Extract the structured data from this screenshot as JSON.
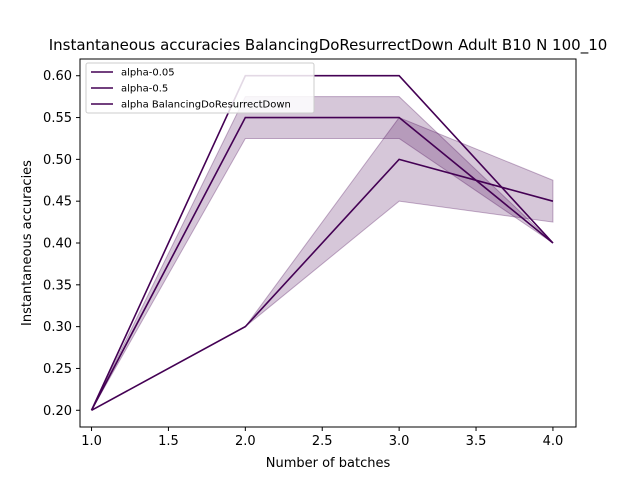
{
  "chart_data": {
    "type": "line",
    "title": "Instantaneous accuracies BalancingDoResurrectDown Adult B10 N 100_10",
    "xlabel": "Number of batches",
    "ylabel": "Instantaneous accuracies",
    "xlim": [
      0.925,
      4.15
    ],
    "ylim": [
      0.18,
      0.62
    ],
    "x_ticks": [
      1.0,
      1.5,
      2.0,
      2.5,
      3.0,
      3.5,
      4.0
    ],
    "x_tick_labels": [
      "1.0",
      "1.5",
      "2.0",
      "2.5",
      "3.0",
      "3.5",
      "4.0"
    ],
    "y_ticks": [
      0.2,
      0.25,
      0.3,
      0.35,
      0.4,
      0.45,
      0.5,
      0.55,
      0.6
    ],
    "y_tick_labels": [
      "0.20",
      "0.25",
      "0.30",
      "0.35",
      "0.40",
      "0.45",
      "0.50",
      "0.55",
      "0.60"
    ],
    "legend_position": "top-left",
    "grid": false,
    "colors": {
      "line": "#440154",
      "band_fill": "#440154",
      "band_opacity": 0.22
    },
    "series": [
      {
        "name": "alpha-0.05",
        "x": [
          1.0,
          2.0,
          3.0,
          4.0
        ],
        "y": [
          0.2,
          0.6,
          0.6,
          0.4
        ]
      },
      {
        "name": "alpha-0.5",
        "x": [
          1.0,
          2.0,
          3.0,
          4.0
        ],
        "y": [
          0.2,
          0.55,
          0.55,
          0.4
        ],
        "band_low": [
          0.2,
          0.525,
          0.525,
          0.4
        ],
        "band_high": [
          0.2,
          0.575,
          0.575,
          0.4
        ]
      },
      {
        "name": "alpha BalancingDoResurrectDown",
        "x": [
          1.0,
          2.0,
          3.0,
          4.0
        ],
        "y": [
          0.2,
          0.3,
          0.5,
          0.45
        ],
        "band_low": [
          0.2,
          0.3,
          0.45,
          0.425
        ],
        "band_high": [
          0.2,
          0.3,
          0.55,
          0.475
        ]
      }
    ]
  }
}
